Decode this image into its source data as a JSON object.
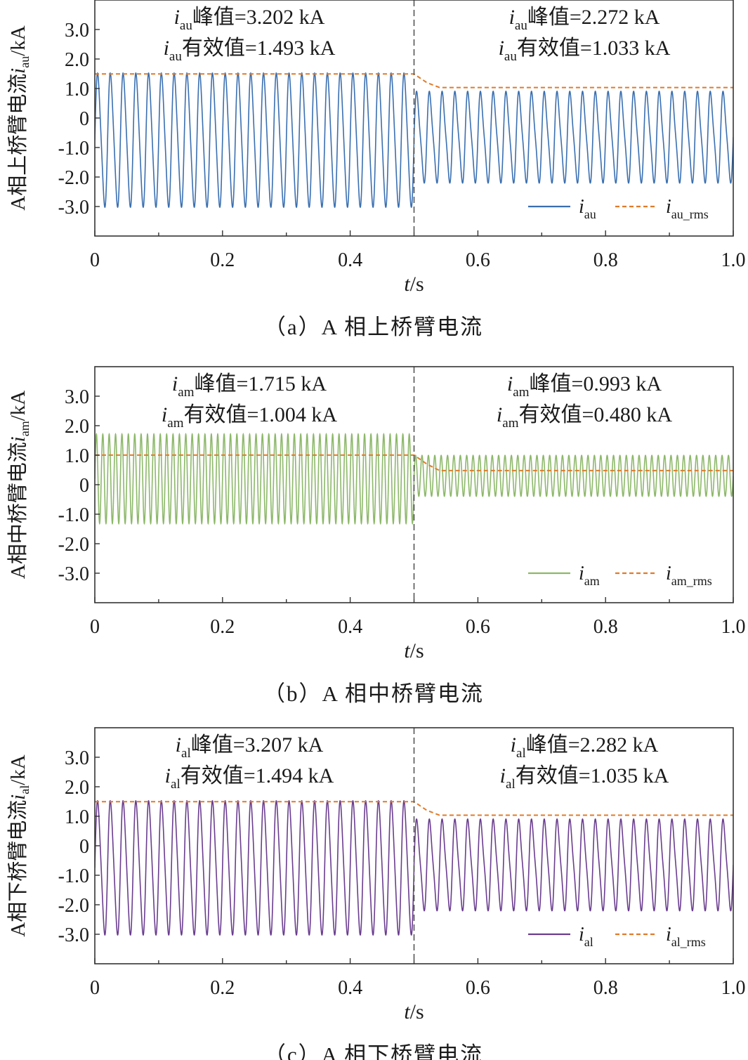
{
  "chart_data": [
    {
      "type": "line",
      "caption": "（a）A 相上桥臂电流",
      "ylabel": {
        "prefix": "A相上桥臂电流",
        "var": "i",
        "sub": "au",
        "suffix": "/kA"
      },
      "xlabel": {
        "var": "t",
        "suffix": "/s"
      },
      "xlim": [
        0,
        1.0
      ],
      "ylim": [
        -4,
        4
      ],
      "xticks": [
        0,
        0.2,
        0.4,
        0.6,
        0.8,
        1.0
      ],
      "xtick_labels": [
        "0",
        "0.2",
        "0.4",
        "0.6",
        "0.8",
        "1.0"
      ],
      "yticks": [
        3,
        2,
        1,
        0,
        -1,
        -2,
        -3
      ],
      "ytick_labels": [
        "3.0",
        "2.0",
        "1.0",
        "0",
        "-1.0",
        "-2.0",
        "-3.0"
      ],
      "switch_time": 0.5,
      "annotations": {
        "left": [
          {
            "var": "i",
            "sub": "au",
            "text": "峰值=3.202 kA"
          },
          {
            "var": "i",
            "sub": "au",
            "text": "有效值=1.493 kA"
          }
        ],
        "right": [
          {
            "var": "i",
            "sub": "au",
            "text": "峰值=2.272 kA"
          },
          {
            "var": "i",
            "sub": "au",
            "text": "有效值=1.033 kA"
          }
        ]
      },
      "legend": [
        {
          "var": "i",
          "sub": "au",
          "style": "solid"
        },
        {
          "var": "i",
          "sub": "au_rms",
          "style": "dashed"
        }
      ],
      "legend_position": "bottom-right",
      "series_color": "#3a6fb0",
      "rms_color": "#e07b2a",
      "waveform": {
        "frequency_hz": 50,
        "cycles_per_segment": 25,
        "before": {
          "dc": -0.75,
          "fund": 2.2,
          "second": 0.3,
          "peak": 3.202,
          "rms": 1.493
        },
        "after": {
          "dc": -0.65,
          "fund": 1.45,
          "second": 0.3,
          "peak": 2.272,
          "rms": 1.033
        }
      },
      "rms_series": {
        "x": [
          0,
          0.5,
          0.52,
          0.54,
          1.0
        ],
        "y": [
          1.493,
          1.493,
          1.2,
          1.033,
          1.033
        ]
      }
    },
    {
      "type": "line",
      "caption": "（b）A 相中桥臂电流",
      "ylabel": {
        "prefix": "A相中桥臂电流",
        "var": "i",
        "sub": "am",
        "suffix": "/kA"
      },
      "xlabel": {
        "var": "t",
        "suffix": "/s"
      },
      "xlim": [
        0,
        1.0
      ],
      "ylim": [
        -4,
        4
      ],
      "xticks": [
        0,
        0.2,
        0.4,
        0.6,
        0.8,
        1.0
      ],
      "xtick_labels": [
        "0",
        "0.2",
        "0.4",
        "0.6",
        "0.8",
        "1.0"
      ],
      "yticks": [
        3,
        2,
        1,
        0,
        -1,
        -2,
        -3
      ],
      "ytick_labels": [
        "3.0",
        "2.0",
        "1.0",
        "0",
        "-1.0",
        "-2.0",
        "-3.0"
      ],
      "switch_time": 0.5,
      "annotations": {
        "left": [
          {
            "var": "i",
            "sub": "am",
            "text": "峰值=1.715 kA"
          },
          {
            "var": "i",
            "sub": "am",
            "text": "有效值=1.004 kA"
          }
        ],
        "right": [
          {
            "var": "i",
            "sub": "am",
            "text": "峰值=0.993 kA"
          },
          {
            "var": "i",
            "sub": "am",
            "text": "有效值=0.480 kA"
          }
        ]
      },
      "legend": [
        {
          "var": "i",
          "sub": "am",
          "style": "solid"
        },
        {
          "var": "i",
          "sub": "am_rms",
          "style": "dashed"
        }
      ],
      "legend_position": "bottom-right",
      "series_color": "#8db86a",
      "rms_color": "#e07b2a",
      "waveform": {
        "frequency_hz": 100,
        "cycles_per_segment": 50,
        "before": {
          "dc": 0.2,
          "fund": 1.515,
          "second": 0.0,
          "peak": 1.715,
          "rms": 1.004
        },
        "after": {
          "dc": 0.3,
          "fund": 0.693,
          "second": 0.0,
          "peak": 0.993,
          "rms": 0.48
        }
      },
      "rms_series": {
        "x": [
          0,
          0.5,
          0.52,
          0.54,
          1.0
        ],
        "y": [
          1.004,
          1.004,
          0.7,
          0.48,
          0.48
        ]
      }
    },
    {
      "type": "line",
      "caption": "（c）A 相下桥臂电流",
      "ylabel": {
        "prefix": "A相下桥臂电流",
        "var": "i",
        "sub": "al",
        "suffix": "/kA"
      },
      "xlabel": {
        "var": "t",
        "suffix": "/s"
      },
      "xlim": [
        0,
        1.0
      ],
      "ylim": [
        -4,
        4
      ],
      "xticks": [
        0,
        0.2,
        0.4,
        0.6,
        0.8,
        1.0
      ],
      "xtick_labels": [
        "0",
        "0.2",
        "0.4",
        "0.6",
        "0.8",
        "1.0"
      ],
      "yticks": [
        3,
        2,
        1,
        0,
        -1,
        -2,
        -3
      ],
      "ytick_labels": [
        "3.0",
        "2.0",
        "1.0",
        "0",
        "-1.0",
        "-2.0",
        "-3.0"
      ],
      "switch_time": 0.5,
      "annotations": {
        "left": [
          {
            "var": "i",
            "sub": "al",
            "text": "峰值=3.207 kA"
          },
          {
            "var": "i",
            "sub": "al",
            "text": "有效值=1.494 kA"
          }
        ],
        "right": [
          {
            "var": "i",
            "sub": "al",
            "text": "峰值=2.282 kA"
          },
          {
            "var": "i",
            "sub": "al",
            "text": "有效值=1.035 kA"
          }
        ]
      },
      "legend": [
        {
          "var": "i",
          "sub": "al",
          "style": "solid"
        },
        {
          "var": "i",
          "sub": "al_rms",
          "style": "dashed"
        }
      ],
      "legend_position": "bottom-right",
      "series_color": "#6a3d8f",
      "rms_color": "#e07b2a",
      "waveform": {
        "frequency_hz": 50,
        "cycles_per_segment": 25,
        "before": {
          "dc": -0.75,
          "fund": 2.2,
          "second": 0.3,
          "peak": 3.207,
          "rms": 1.494
        },
        "after": {
          "dc": -0.65,
          "fund": 1.45,
          "second": 0.3,
          "peak": 2.282,
          "rms": 1.035
        }
      },
      "rms_series": {
        "x": [
          0,
          0.5,
          0.52,
          0.54,
          1.0
        ],
        "y": [
          1.494,
          1.494,
          1.2,
          1.035,
          1.035
        ]
      }
    }
  ]
}
